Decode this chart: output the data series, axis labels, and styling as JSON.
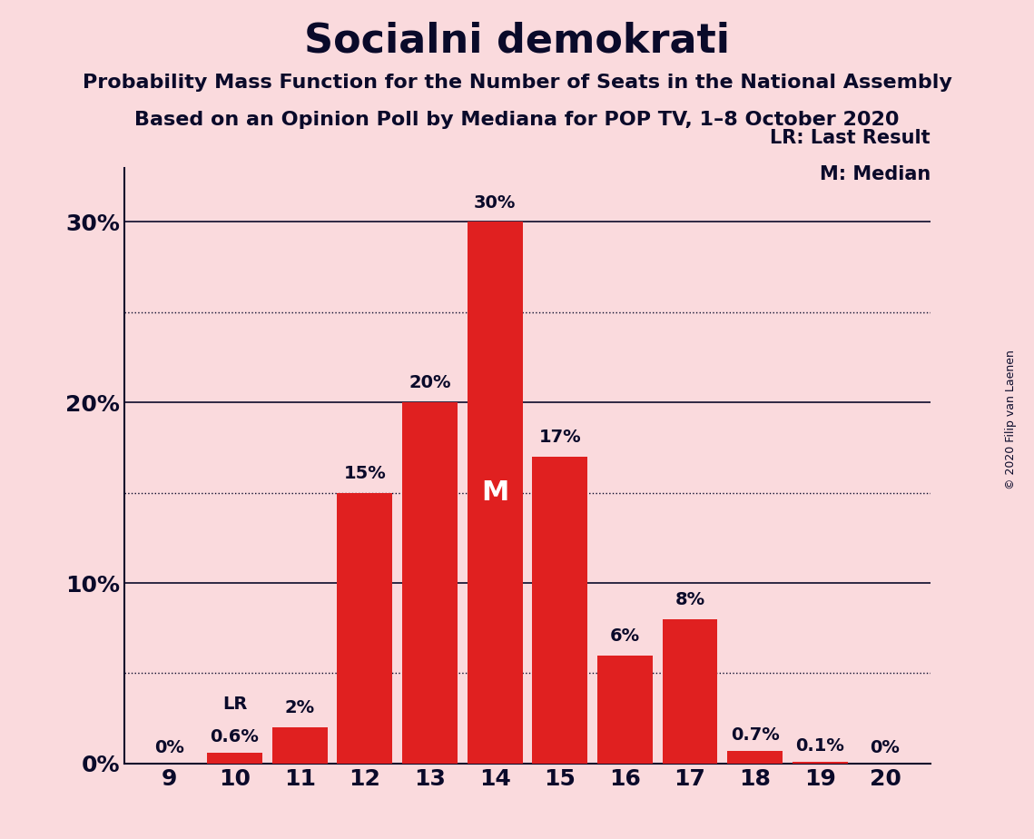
{
  "title": "Socialni demokrati",
  "subtitle1": "Probability Mass Function for the Number of Seats in the National Assembly",
  "subtitle2": "Based on an Opinion Poll by Mediana for POP TV, 1–8 October 2020",
  "copyright": "© 2020 Filip van Laenen",
  "categories": [
    9,
    10,
    11,
    12,
    13,
    14,
    15,
    16,
    17,
    18,
    19,
    20
  ],
  "values": [
    0.0,
    0.6,
    2.0,
    15.0,
    20.0,
    30.0,
    17.0,
    6.0,
    8.0,
    0.7,
    0.1,
    0.0
  ],
  "bar_color": "#e02020",
  "background_color": "#fadadd",
  "text_color": "#0a0a2a",
  "bar_labels": [
    "0%",
    "0.6%",
    "2%",
    "15%",
    "20%",
    "30%",
    "17%",
    "6%",
    "8%",
    "0.7%",
    "0.1%",
    "0%"
  ],
  "yticks": [
    0,
    10,
    20,
    30
  ],
  "ylim": [
    0,
    33
  ],
  "median_seat": 14,
  "lr_seat": 10,
  "legend_LR": "LR: Last Result",
  "legend_M": "M: Median",
  "dotted_lines": [
    5.0,
    15.0,
    25.0
  ],
  "title_fontsize": 32,
  "subtitle_fontsize": 16,
  "tick_fontsize": 18,
  "label_fontsize": 14,
  "lr_label_fontsize": 14,
  "m_label_fontsize": 22,
  "legend_fontsize": 15,
  "copyright_fontsize": 9
}
